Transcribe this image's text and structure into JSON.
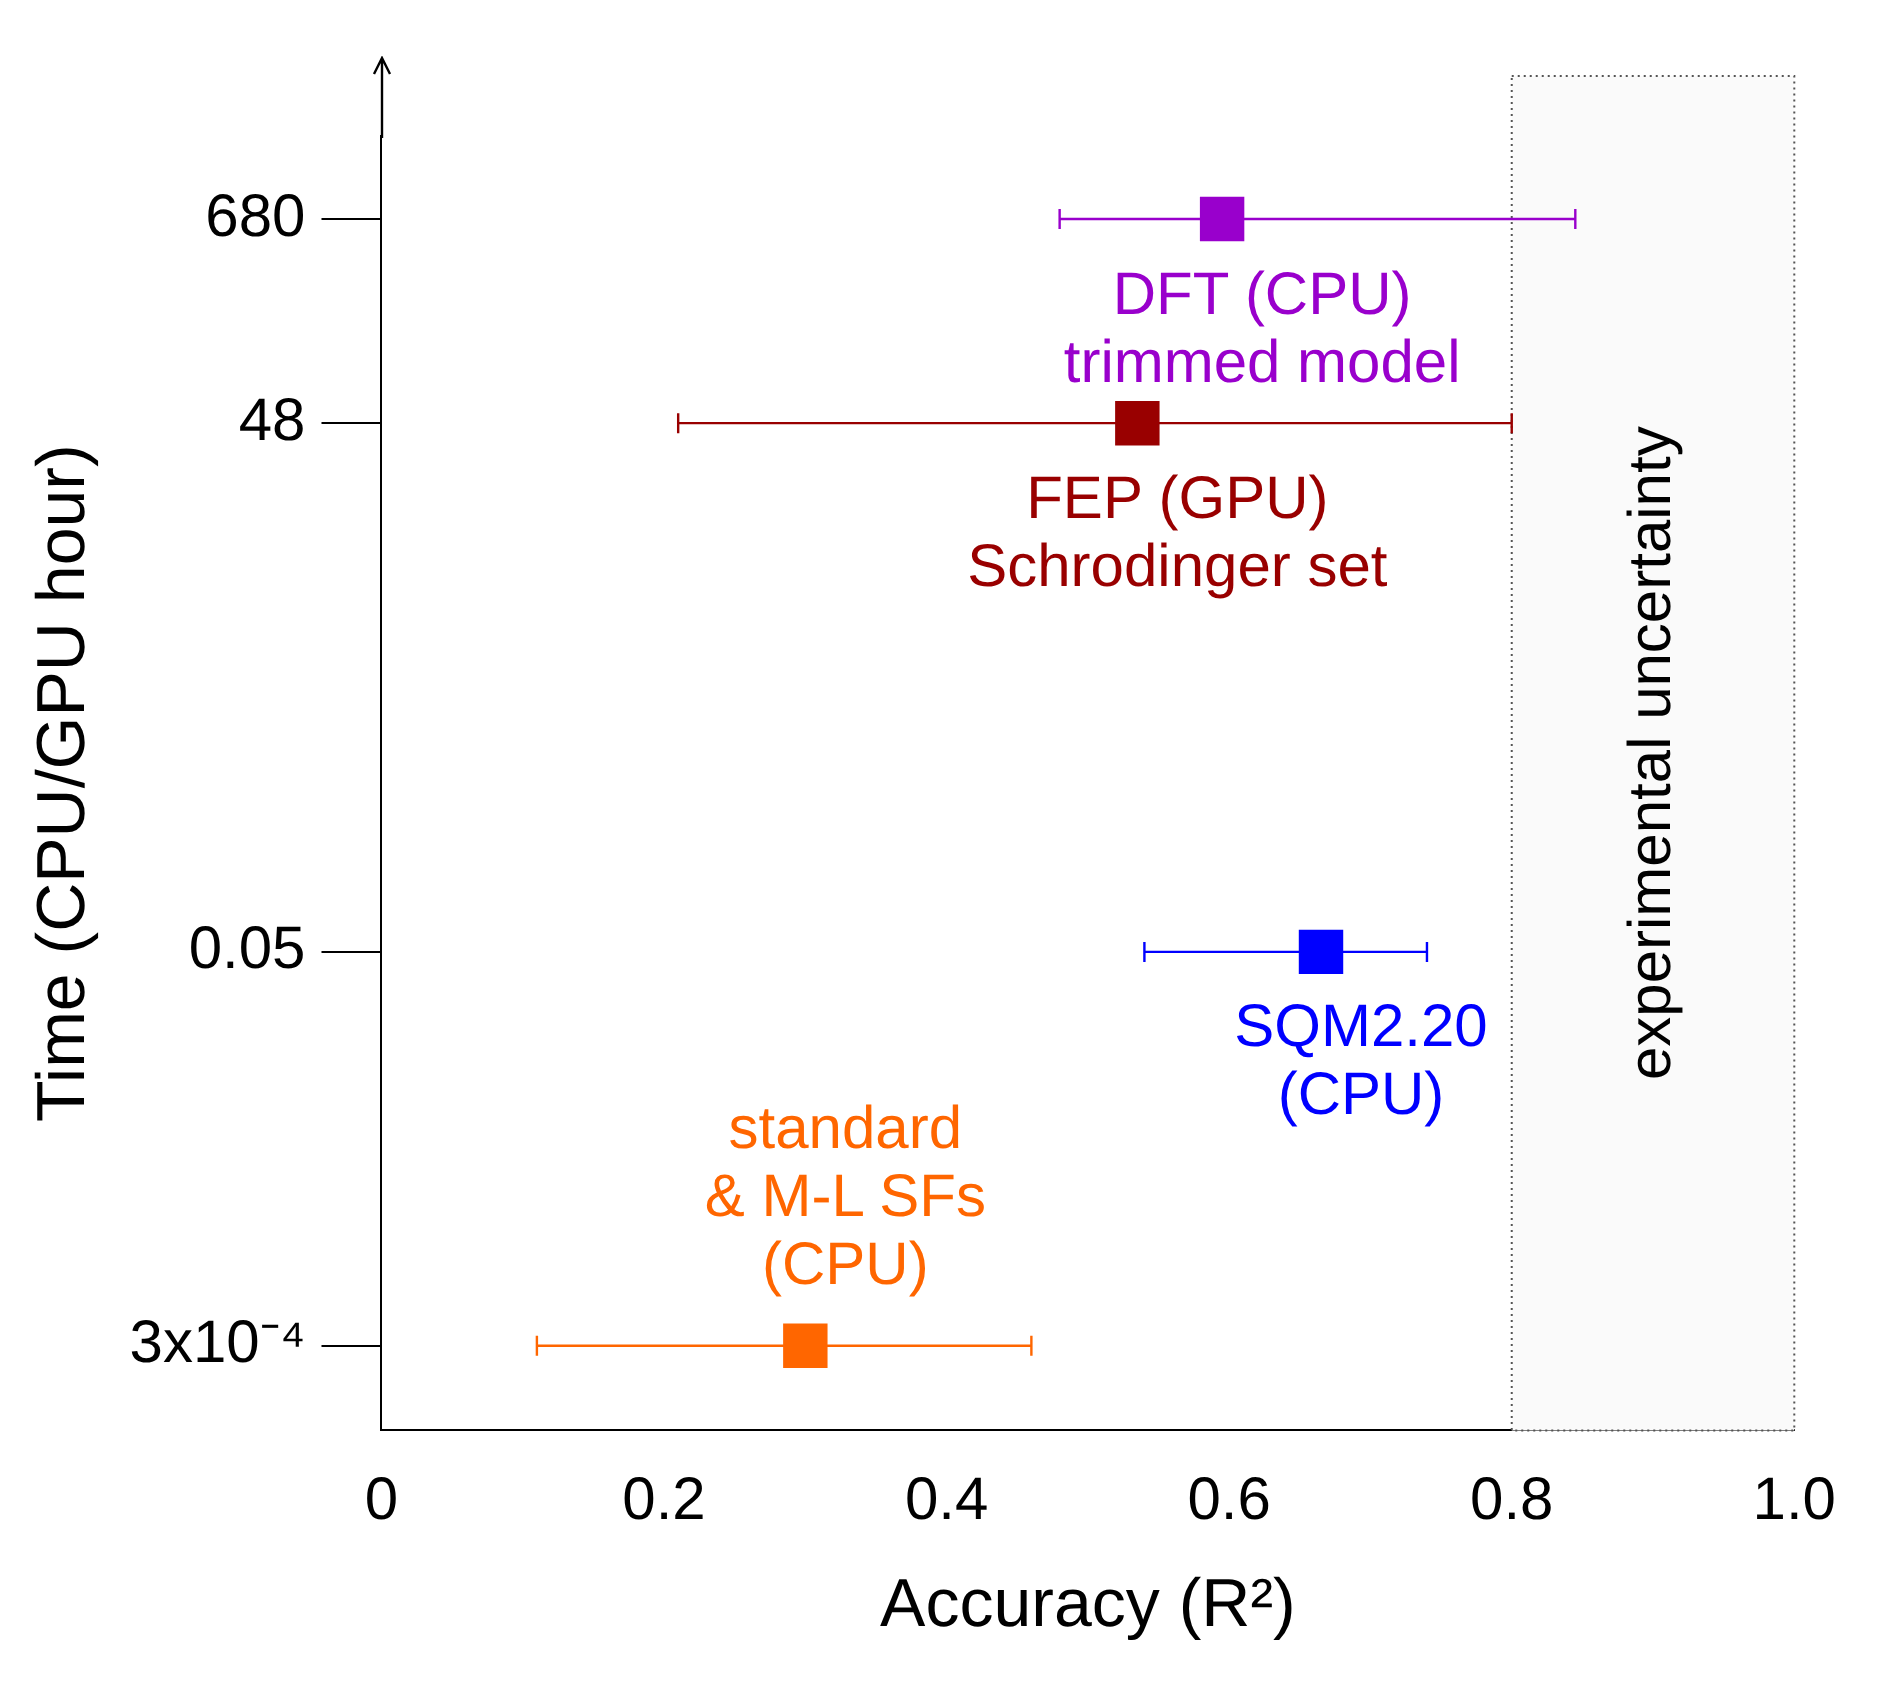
{
  "chart_data": {
    "type": "scatter",
    "xlabel": "Accuracy (R²)",
    "ylabel": "Time (CPU/GPU hour)",
    "xlim": [
      0,
      1.0
    ],
    "xticks": [
      0,
      0.2,
      0.4,
      0.6,
      0.8,
      {
        "value": 1.0,
        "label": "1.0"
      }
    ],
    "ylim": [
      0.0001,
      2000
    ],
    "yticks": [
      {
        "value": 0.0003,
        "label": "3x10⁻⁴"
      },
      0.05,
      48,
      680
    ],
    "log": "y",
    "grid": false,
    "legend": false,
    "marker": "square",
    "series": [
      {
        "name": "DFT (CPU)\ntrimmed model",
        "color": "#9900cc",
        "x": [
          0.595
        ],
        "values": [
          680
        ],
        "xerrors": [
          [
            0.48,
            0.845
          ]
        ]
      },
      {
        "name": "FEP (GPU)\nSchrodinger set",
        "color": "#990000",
        "x": [
          0.535
        ],
        "values": [
          48
        ],
        "xerrors": [
          [
            0.21,
            0.8
          ]
        ]
      },
      {
        "name": "SQM2.20\n(CPU)",
        "color": "#0000ff",
        "x": [
          0.665
        ],
        "values": [
          0.05
        ],
        "xerrors": [
          [
            0.54,
            0.74
          ]
        ]
      },
      {
        "name": "standard\n& M-L SFs\n(CPU)",
        "color": "#ff6600",
        "x": [
          0.3
        ],
        "values": [
          0.0003
        ],
        "xerrors": [
          [
            0.11,
            0.46
          ]
        ]
      }
    ],
    "bands": [
      {
        "axis": "x",
        "from": 0.8,
        "to": 1.0,
        "label": "experimental uncertainty",
        "color": "#fafafa"
      }
    ]
  }
}
